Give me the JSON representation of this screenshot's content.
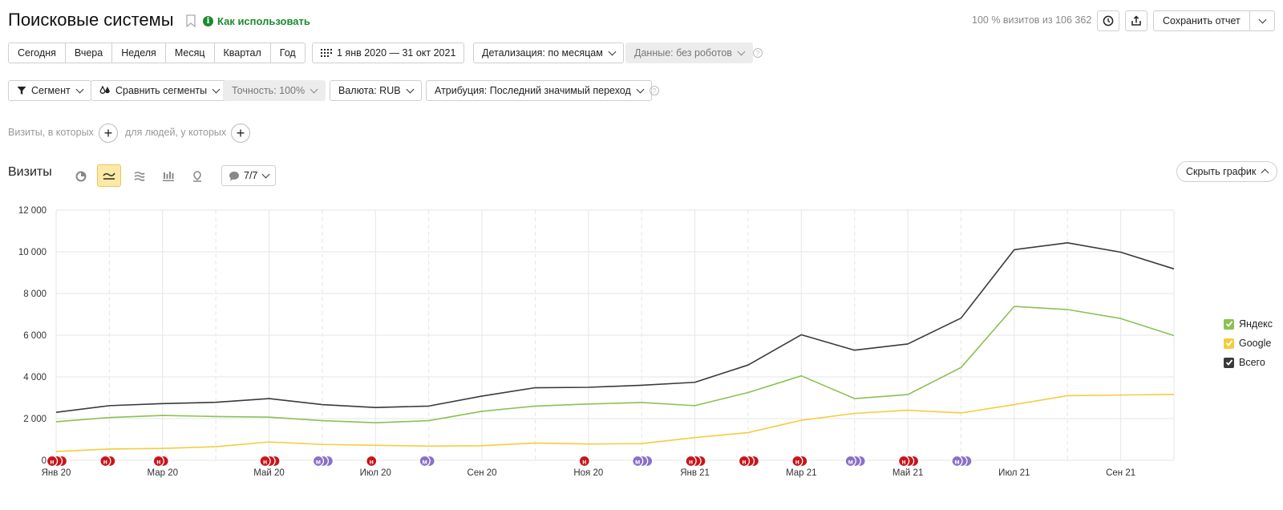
{
  "header": {
    "title": "Поисковые системы",
    "howto_label": "Как использовать",
    "visits_share": "100 % визитов из 106 362",
    "save_report_label": "Сохранить отчет"
  },
  "periods": [
    "Сегодня",
    "Вчера",
    "Неделя",
    "Месяц",
    "Квартал",
    "Год"
  ],
  "date_range": "1 янв 2020 — 31 окт 2021",
  "detail_label": "Детализация: по месяцам",
  "data_label": "Данные: без роботов",
  "filters": {
    "segment": "Сегмент",
    "compare": "Сравнить сегменты",
    "accuracy": "Точность: 100%",
    "currency": "Валюта: RUB",
    "attribution": "Атрибуция: Последний значимый переход"
  },
  "segment_builder": {
    "visits_text": "Визиты, в которых",
    "people_text": "для людей, у которых"
  },
  "section": {
    "title": "Визиты",
    "annotations_label": "7/7",
    "hide_graph_label": "Скрыть график"
  },
  "colors": {
    "yandex": "#8cc152",
    "google": "#f5cd3c",
    "total": "#3a3a3a",
    "accent_green": "#1d8a2e",
    "marker_red": "#c8151b",
    "marker_purple": "#8a70c8"
  },
  "legend": [
    {
      "name": "Яндекс",
      "color": "#8cc152"
    },
    {
      "name": "Google",
      "color": "#f5cd3c"
    },
    {
      "name": "Всего",
      "color": "#3a3a3a"
    }
  ],
  "chart_data": {
    "type": "line",
    "ylim": [
      0,
      12000
    ],
    "y_ticks": [
      "12 000",
      "10 000",
      "8 000",
      "6 000",
      "4 000",
      "2 000",
      "0"
    ],
    "y_tick_values": [
      12000,
      10000,
      8000,
      6000,
      4000,
      2000,
      0
    ],
    "x_tick_labels": [
      "Янв 20",
      "Мар 20",
      "Май 20",
      "Июл 20",
      "Сен 20",
      "Ноя 20",
      "Янв 21",
      "Мар 21",
      "Май 21",
      "Июл 21",
      "Сен 21"
    ],
    "x_tick_months": [
      0,
      2,
      4,
      6,
      8,
      10,
      12,
      14,
      16,
      18,
      20
    ],
    "months": [
      "2020-01",
      "2020-02",
      "2020-03",
      "2020-04",
      "2020-05",
      "2020-06",
      "2020-07",
      "2020-08",
      "2020-09",
      "2020-10",
      "2020-11",
      "2020-12",
      "2021-01",
      "2021-02",
      "2021-03",
      "2021-04",
      "2021-05",
      "2021-06",
      "2021-07",
      "2021-08",
      "2021-09",
      "2021-10"
    ],
    "series": [
      {
        "name": "Яндекс",
        "color": "#8cc152",
        "values": [
          1850,
          2050,
          2150,
          2100,
          2070,
          1900,
          1800,
          1900,
          2350,
          2600,
          2700,
          2770,
          2620,
          3250,
          4050,
          2960,
          3150,
          4450,
          7380,
          7230,
          6800,
          5980
        ]
      },
      {
        "name": "Google",
        "color": "#f5cd3c",
        "values": [
          420,
          540,
          570,
          650,
          880,
          760,
          720,
          680,
          700,
          830,
          780,
          800,
          1090,
          1330,
          1920,
          2250,
          2400,
          2270,
          2670,
          3100,
          3130,
          3160
        ]
      },
      {
        "name": "Всего",
        "color": "#3a3a3a",
        "values": [
          2300,
          2620,
          2720,
          2780,
          2960,
          2670,
          2530,
          2600,
          3080,
          3480,
          3500,
          3600,
          3740,
          4570,
          6020,
          5280,
          5580,
          6820,
          10100,
          10430,
          9980,
          9180
        ]
      }
    ],
    "markers": [
      {
        "month": 0,
        "kind": "н",
        "count": 3
      },
      {
        "month": 1,
        "kind": "н",
        "count": 2
      },
      {
        "month": 2,
        "kind": "н",
        "count": 2
      },
      {
        "month": 4,
        "kind": "н",
        "count": 3
      },
      {
        "month": 5,
        "kind": "м",
        "count": 3
      },
      {
        "month": 6,
        "kind": "н",
        "count": 1
      },
      {
        "month": 7,
        "kind": "м",
        "count": 2
      },
      {
        "month": 10,
        "kind": "н",
        "count": 1
      },
      {
        "month": 11,
        "kind": "м",
        "count": 3
      },
      {
        "month": 12,
        "kind": "н",
        "count": 3
      },
      {
        "month": 13,
        "kind": "н",
        "count": 3
      },
      {
        "month": 14,
        "kind": "н",
        "count": 2
      },
      {
        "month": 15,
        "kind": "м",
        "count": 3
      },
      {
        "month": 16,
        "kind": "н",
        "count": 3
      },
      {
        "month": 17,
        "kind": "м",
        "count": 3
      }
    ]
  }
}
